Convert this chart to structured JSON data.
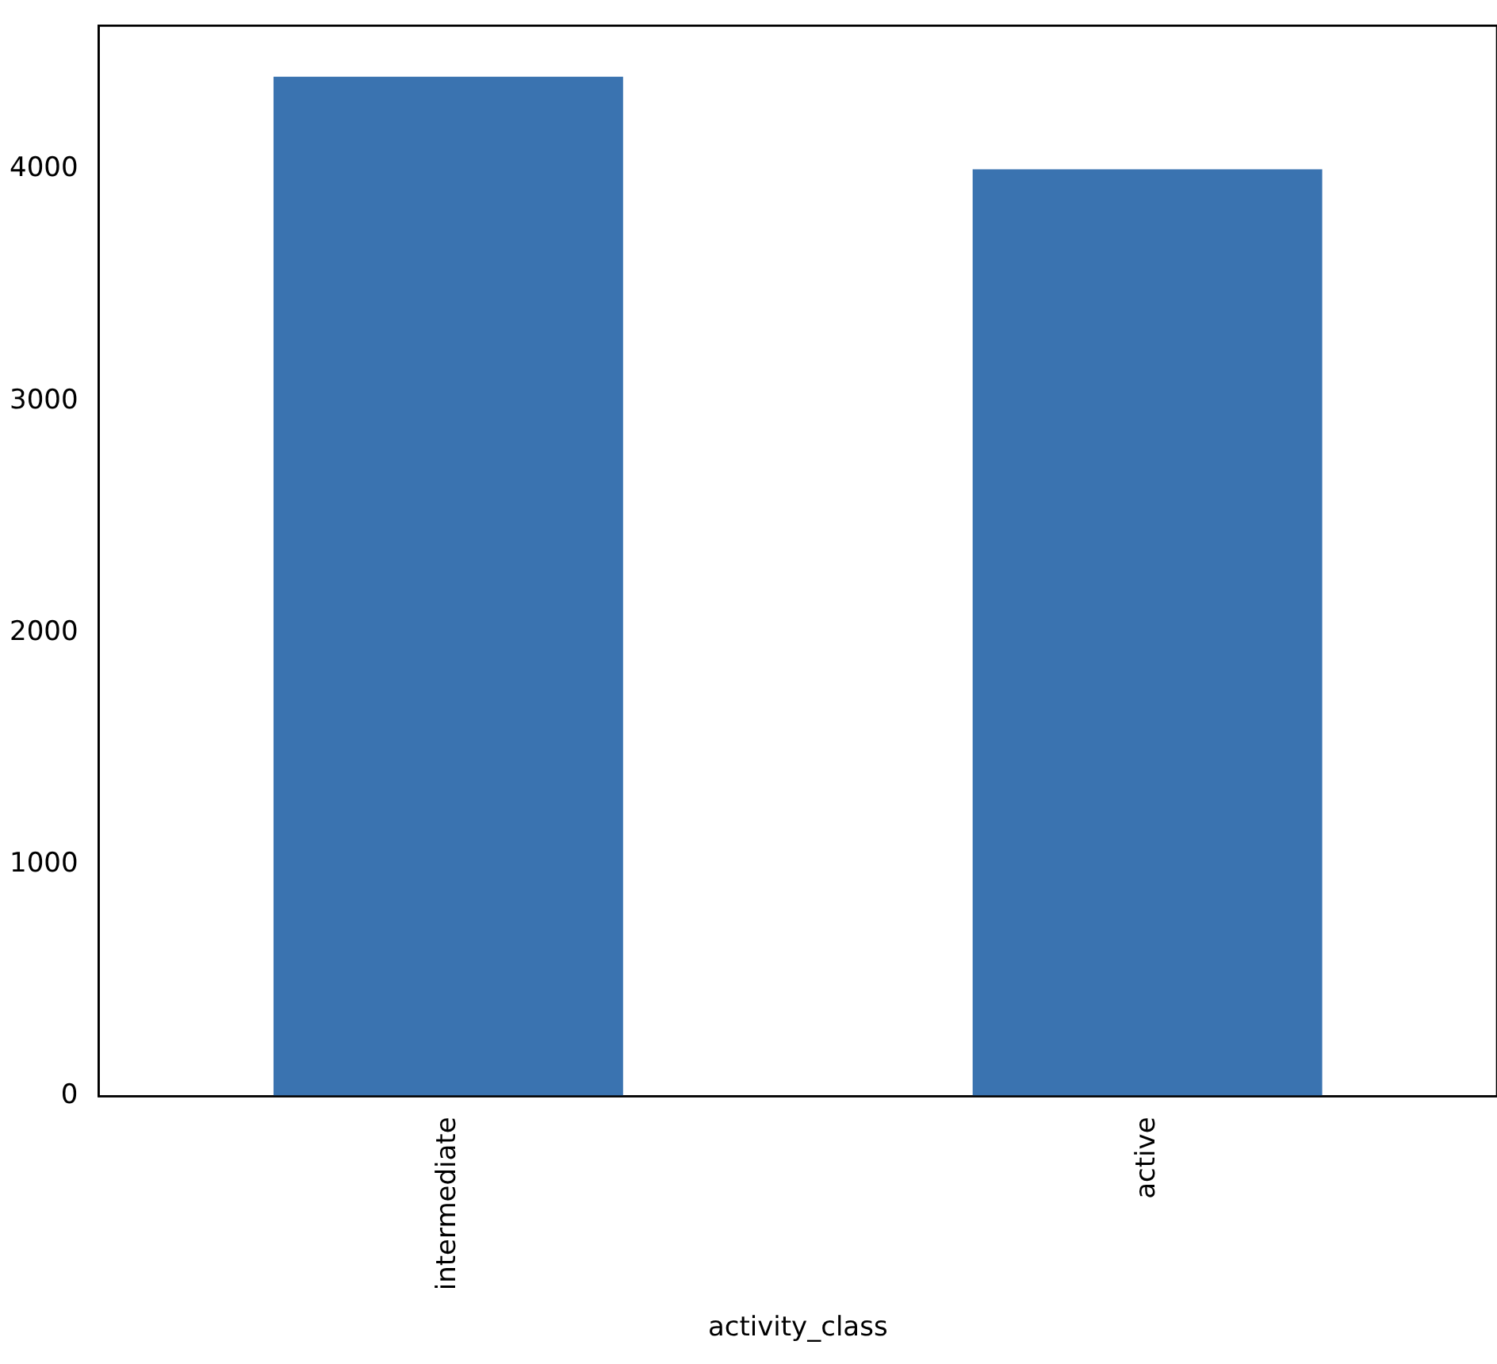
{
  "chart_data": {
    "type": "bar",
    "xlabel": "activity_class",
    "categories": [
      "intermediate",
      "active"
    ],
    "values": [
      4400,
      4000
    ],
    "color": "#3a73b0",
    "ylim": [
      0,
      4620
    ],
    "yticks": [
      0,
      1000,
      2000,
      3000,
      4000
    ],
    "grid": false,
    "legend": false
  }
}
